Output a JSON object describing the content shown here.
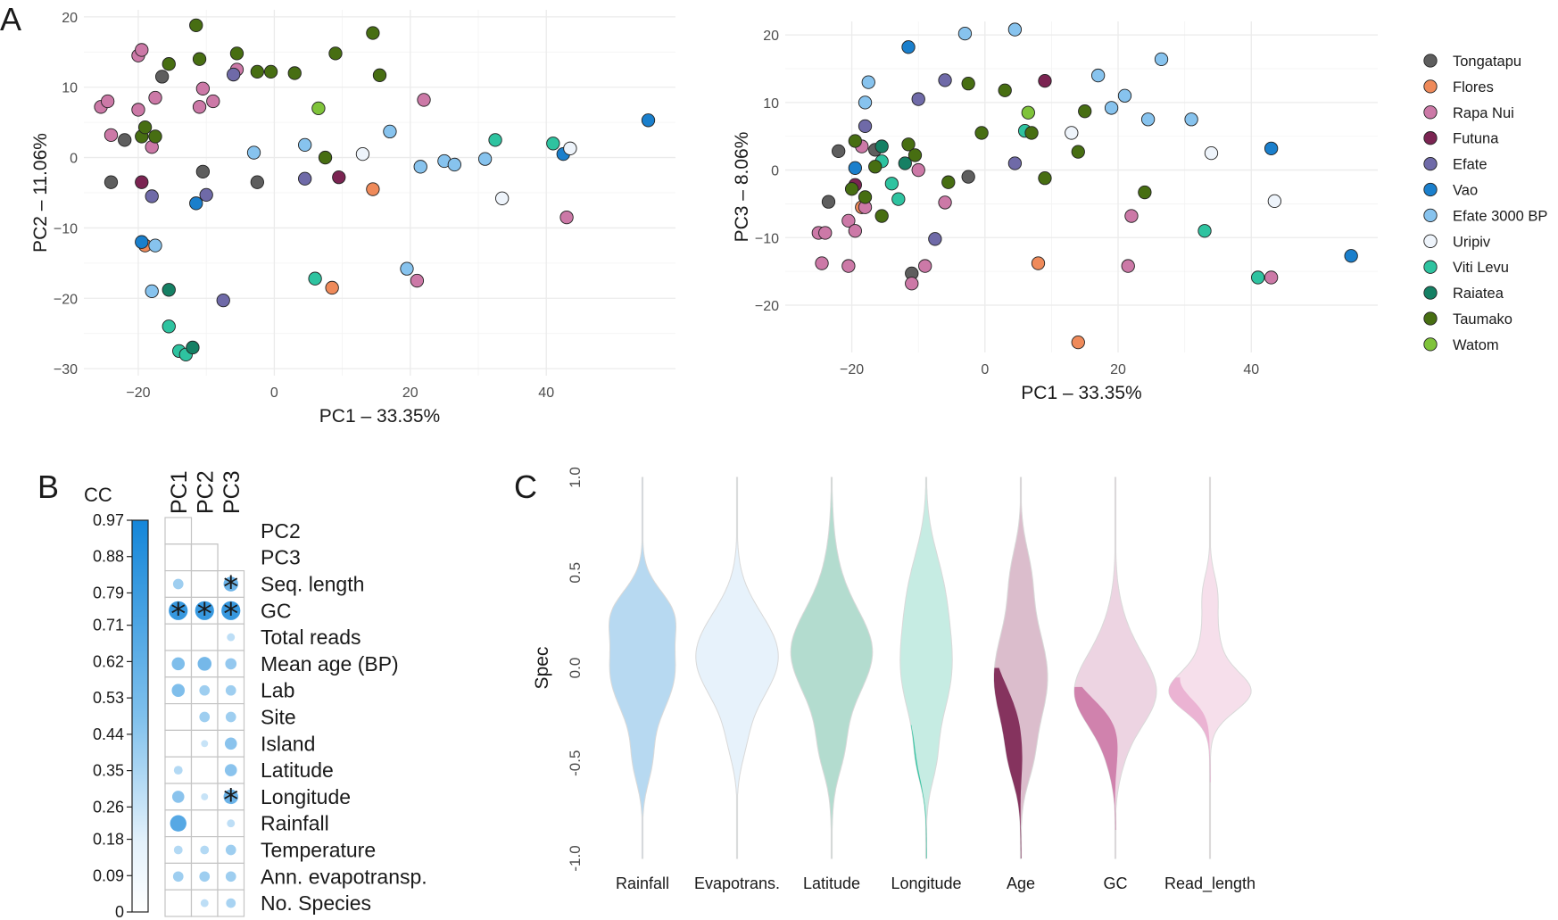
{
  "panel_labels": {
    "a": "A",
    "b": "B",
    "c": "C"
  },
  "colors": {
    "Tongatapu": "#5e5e5e",
    "Flores": "#ef8a5a",
    "Rapa Nui": "#cc79a7",
    "Futuna": "#7b2452",
    "Efate": "#6f6aa8",
    "Vao": "#1a7fcc",
    "Efate 3000 BP": "#87c3ee",
    "Uripiv": "#eef4fb",
    "Viti Levu": "#2ec3a0",
    "Raiatea": "#158064",
    "Taumako": "#476e12",
    "Watom": "#7fc33a"
  },
  "chart_data": [
    {
      "type": "scatter",
      "title": "",
      "xlabel": "PC1  –  33.35%",
      "ylabel": "PC2  –  11.06%",
      "xlim": [
        -28,
        59
      ],
      "ylim": [
        -31,
        21
      ],
      "xticks": [
        -20,
        0,
        20,
        40
      ],
      "yticks": [
        -30,
        -20,
        -10,
        0,
        10,
        20
      ],
      "grid": true,
      "legend": "none",
      "series": [
        {
          "name": "Tongatapu",
          "points": [
            [
              -22,
              2.5
            ],
            [
              -16.5,
              11.5
            ],
            [
              -24,
              -3.5
            ],
            [
              -10.5,
              -2
            ],
            [
              -2.5,
              -3.5
            ]
          ]
        },
        {
          "name": "Flores",
          "points": [
            [
              -19,
              -12.5
            ],
            [
              14.5,
              -4.5
            ],
            [
              8.5,
              -18.5
            ]
          ]
        },
        {
          "name": "Rapa Nui",
          "points": [
            [
              -25.5,
              7.2
            ],
            [
              -24.5,
              8
            ],
            [
              -20,
              14.5
            ],
            [
              -19.5,
              15.3
            ],
            [
              -20,
              6.8
            ],
            [
              -17.5,
              8.5
            ],
            [
              -24,
              3.2
            ],
            [
              -18,
              1.5
            ],
            [
              -11,
              7.2
            ],
            [
              -10.5,
              9.8
            ],
            [
              -9,
              8
            ],
            [
              -5.5,
              12.5
            ],
            [
              22,
              8.2
            ],
            [
              43,
              -8.5
            ],
            [
              21,
              -17.5
            ]
          ]
        },
        {
          "name": "Futuna",
          "points": [
            [
              -19.5,
              -3.5
            ],
            [
              9.5,
              -2.8
            ]
          ]
        },
        {
          "name": "Efate",
          "points": [
            [
              -18,
              -5.5
            ],
            [
              -10,
              -5.3
            ],
            [
              -6,
              11.8
            ],
            [
              4.5,
              -3
            ],
            [
              -7.5,
              -20.3
            ]
          ]
        },
        {
          "name": "Vao",
          "points": [
            [
              -19.5,
              -12
            ],
            [
              -11.5,
              -6.5
            ],
            [
              55,
              5.3
            ],
            [
              42.5,
              0.5
            ]
          ]
        },
        {
          "name": "Efate 3000 BP",
          "points": [
            [
              -17.5,
              -12.5
            ],
            [
              -18,
              -19
            ],
            [
              -3,
              0.7
            ],
            [
              4.5,
              1.8
            ],
            [
              17,
              3.7
            ],
            [
              21.5,
              -1.3
            ],
            [
              25,
              -0.5
            ],
            [
              26.5,
              -1
            ],
            [
              31,
              -0.2
            ],
            [
              19.5,
              -15.8
            ]
          ]
        },
        {
          "name": "Uripiv",
          "points": [
            [
              13,
              0.5
            ],
            [
              33.5,
              -5.8
            ],
            [
              43.5,
              1.3
            ]
          ]
        },
        {
          "name": "Viti Levu",
          "points": [
            [
              32.5,
              2.5
            ],
            [
              41,
              2
            ],
            [
              -15.5,
              -24
            ],
            [
              -14,
              -27.5
            ],
            [
              -13,
              -28
            ],
            [
              6,
              -17.2
            ]
          ]
        },
        {
          "name": "Raiatea",
          "points": [
            [
              -15.5,
              -18.8
            ],
            [
              -12,
              -27
            ]
          ]
        },
        {
          "name": "Taumako",
          "points": [
            [
              -11.5,
              18.8
            ],
            [
              -19.5,
              3
            ],
            [
              -19,
              4.3
            ],
            [
              -17.5,
              3
            ],
            [
              -15.5,
              13.3
            ],
            [
              -11,
              14
            ],
            [
              -5.5,
              14.8
            ],
            [
              -2.5,
              12.2
            ],
            [
              -0.5,
              12.2
            ],
            [
              3,
              12
            ],
            [
              9,
              14.8
            ],
            [
              14.5,
              17.7
            ],
            [
              15.5,
              11.7
            ],
            [
              7.5,
              0
            ]
          ]
        },
        {
          "name": "Watom",
          "points": [
            [
              6.5,
              7
            ]
          ]
        }
      ]
    },
    {
      "type": "scatter",
      "title": "",
      "xlabel": "PC1  –  33.35%",
      "ylabel": "PC3  –  8.06%",
      "xlim": [
        -30,
        59
      ],
      "ylim": [
        -27,
        22
      ],
      "xticks": [
        -20,
        0,
        20,
        40
      ],
      "yticks": [
        -20,
        -10,
        0,
        10,
        20
      ],
      "grid": true,
      "legend": "right",
      "series": [
        {
          "name": "Tongatapu",
          "points": [
            [
              -22,
              2.8
            ],
            [
              -16.5,
              3
            ],
            [
              -23.5,
              -4.7
            ],
            [
              -2.5,
              -1
            ],
            [
              -11,
              -15.3
            ]
          ]
        },
        {
          "name": "Flores",
          "points": [
            [
              -18.5,
              -5.5
            ],
            [
              8,
              -13.8
            ],
            [
              14,
              -25.5
            ]
          ]
        },
        {
          "name": "Rapa Nui",
          "points": [
            [
              -25,
              -9.3
            ],
            [
              -24,
              -9.3
            ],
            [
              -24.5,
              -13.8
            ],
            [
              -20.5,
              -14.2
            ],
            [
              -20.5,
              -7.5
            ],
            [
              -19.5,
              -9
            ],
            [
              -18,
              -5.5
            ],
            [
              -18.5,
              3.5
            ],
            [
              -10,
              0
            ],
            [
              -6,
              -4.8
            ],
            [
              -11,
              -16.8
            ],
            [
              -9,
              -14.2
            ],
            [
              22,
              -6.8
            ],
            [
              21.5,
              -14.2
            ],
            [
              43,
              -15.9
            ]
          ]
        },
        {
          "name": "Futuna",
          "points": [
            [
              -19.5,
              -2.2
            ],
            [
              9,
              13.2
            ]
          ]
        },
        {
          "name": "Efate",
          "points": [
            [
              -18,
              6.5
            ],
            [
              -10,
              10.5
            ],
            [
              -6,
              13.3
            ],
            [
              4.5,
              1
            ],
            [
              -7.5,
              -10.2
            ]
          ]
        },
        {
          "name": "Vao",
          "points": [
            [
              -19.5,
              0.3
            ],
            [
              -11.5,
              18.2
            ],
            [
              43,
              3.2
            ],
            [
              55,
              -12.7
            ]
          ]
        },
        {
          "name": "Efate 3000 BP",
          "points": [
            [
              -17.5,
              13
            ],
            [
              -18,
              10
            ],
            [
              -3,
              20.2
            ],
            [
              4.5,
              20.8
            ],
            [
              17,
              14
            ],
            [
              19,
              9.2
            ],
            [
              21,
              11
            ],
            [
              24.5,
              7.5
            ],
            [
              26.5,
              16.4
            ],
            [
              31,
              7.5
            ]
          ]
        },
        {
          "name": "Uripiv",
          "points": [
            [
              13,
              5.5
            ],
            [
              34,
              2.5
            ],
            [
              43.5,
              -4.6
            ]
          ]
        },
        {
          "name": "Viti Levu",
          "points": [
            [
              -15.5,
              1.3
            ],
            [
              -14,
              -2
            ],
            [
              -13,
              -4.3
            ],
            [
              6,
              5.8
            ],
            [
              33,
              -9
            ],
            [
              41,
              -15.9
            ]
          ]
        },
        {
          "name": "Raiatea",
          "points": [
            [
              -15.5,
              3.5
            ],
            [
              -12,
              1
            ]
          ]
        },
        {
          "name": "Taumako",
          "points": [
            [
              -19.5,
              4.3
            ],
            [
              -20,
              -2.8
            ],
            [
              -18,
              -4
            ],
            [
              -15.5,
              -6.8
            ],
            [
              -16.5,
              0.5
            ],
            [
              -11.5,
              3.8
            ],
            [
              -10.5,
              2.2
            ],
            [
              -5.5,
              -1.8
            ],
            [
              -2.5,
              12.8
            ],
            [
              -0.5,
              5.5
            ],
            [
              3,
              11.8
            ],
            [
              7,
              5.5
            ],
            [
              9,
              -1.2
            ],
            [
              14,
              2.7
            ],
            [
              15,
              8.7
            ],
            [
              24,
              -3.3
            ]
          ]
        },
        {
          "name": "Watom",
          "points": [
            [
              6.5,
              8.5
            ]
          ]
        }
      ]
    },
    {
      "type": "heatmap",
      "title": "",
      "legend_title": "CC",
      "columns": [
        "PC1",
        "PC2",
        "PC3"
      ],
      "rows": [
        "PC2",
        "PC3",
        "Seq. length",
        "GC",
        "Total reads",
        "Mean age (BP)",
        "Lab",
        "Site",
        "Island",
        "Latitude",
        "Longitude",
        "Rainfall",
        "Temperature",
        "Ann. evapotransp.",
        "No. Species"
      ],
      "scale_ticks": [
        "0.97",
        "0.88",
        "0.79",
        "0.71",
        "0.62",
        "0.53",
        "0.44",
        "0.35",
        "0.26",
        "0.18",
        "0.09",
        "0"
      ],
      "scale_range": [
        0,
        0.97
      ],
      "values": [
        [
          null,
          null,
          null
        ],
        [
          null,
          null,
          null
        ],
        [
          0.3,
          null,
          0.55
        ],
        [
          0.8,
          0.8,
          0.8
        ],
        [
          null,
          null,
          0.15
        ],
        [
          0.45,
          0.5,
          0.35
        ],
        [
          0.45,
          0.3,
          0.3
        ],
        [
          null,
          0.3,
          0.3
        ],
        [
          null,
          0.1,
          0.4
        ],
        [
          0.2,
          null,
          0.4
        ],
        [
          0.4,
          0.1,
          0.55
        ],
        [
          0.65,
          null,
          0.15
        ],
        [
          0.2,
          0.2,
          0.3
        ],
        [
          0.3,
          0.3,
          0.3
        ],
        [
          null,
          0.15,
          0.25
        ]
      ],
      "significant": [
        [
          false,
          false,
          false
        ],
        [
          false,
          false,
          false
        ],
        [
          false,
          false,
          true
        ],
        [
          true,
          true,
          true
        ],
        [
          false,
          false,
          false
        ],
        [
          false,
          false,
          false
        ],
        [
          false,
          false,
          false
        ],
        [
          false,
          false,
          false
        ],
        [
          false,
          false,
          false
        ],
        [
          false,
          false,
          false
        ],
        [
          false,
          false,
          true
        ],
        [
          false,
          false,
          false
        ],
        [
          false,
          false,
          false
        ],
        [
          false,
          false,
          false
        ],
        [
          false,
          false,
          false
        ]
      ],
      "marker": "*"
    },
    {
      "type": "violin",
      "title": "",
      "xlabel": "",
      "ylabel": "Spec",
      "ylim": [
        -1.0,
        1.0
      ],
      "yticks": [
        "1.0",
        "0.5",
        "0.0",
        "-0.5",
        "-1.0"
      ],
      "ytick_values": [
        1.0,
        0.5,
        0.0,
        -0.5,
        -1.0
      ],
      "categories": [
        "Rainfall",
        "Evapotrans.",
        "Latitude",
        "Longitude",
        "Age",
        "GC",
        "Read_length"
      ],
      "colors": [
        "#b7d9f1",
        "#e7f2fb",
        "#b3dccf",
        "#c6ece3",
        "#dbbdcc",
        "#edd4e2",
        "#f6dfeb"
      ],
      "highlight_colors": [
        null,
        null,
        null,
        "#2ec3a0",
        "#7b2452",
        "#cc79a7",
        "#eaaed0"
      ]
    }
  ]
}
